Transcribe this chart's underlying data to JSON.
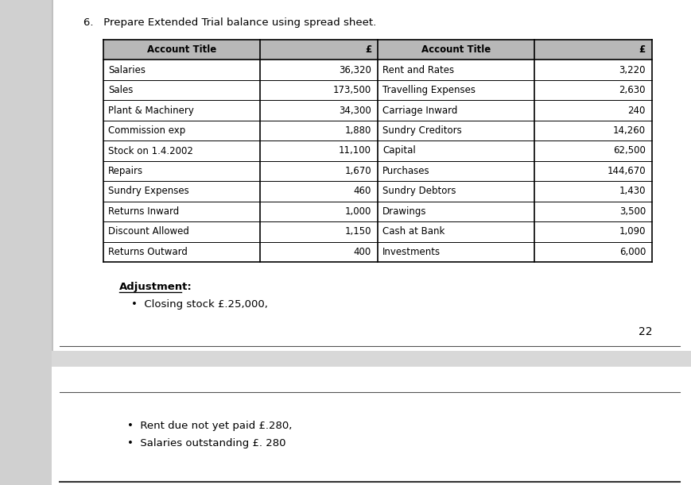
{
  "title": "6.   Prepare Extended Trial balance using spread sheet.",
  "header": [
    "Account Title",
    "£",
    "Account Title",
    "£"
  ],
  "left_accounts": [
    [
      "Salaries",
      "36,320"
    ],
    [
      "Sales",
      "173,500"
    ],
    [
      "Plant & Machinery",
      "34,300"
    ],
    [
      "Commission exp",
      "1,880"
    ],
    [
      "Stock on 1.4.2002",
      "11,100"
    ],
    [
      "Repairs",
      "1,670"
    ],
    [
      "Sundry Expenses",
      "460"
    ],
    [
      "Returns Inward",
      "1,000"
    ],
    [
      "Discount Allowed",
      "1,150"
    ],
    [
      "Returns Outward",
      "400"
    ]
  ],
  "right_accounts": [
    [
      "Rent and Rates",
      "3,220"
    ],
    [
      "Travelling Expenses",
      "2,630"
    ],
    [
      "Carriage Inward",
      "240"
    ],
    [
      "Sundry Creditors",
      "14,260"
    ],
    [
      "Capital",
      "62,500"
    ],
    [
      "Purchases",
      "144,670"
    ],
    [
      "Sundry Debtors",
      "1,430"
    ],
    [
      "Drawings",
      "3,500"
    ],
    [
      "Cash at Bank",
      "1,090"
    ],
    [
      "Investments",
      "6,000"
    ]
  ],
  "adjustment_title": "Adjustment:",
  "adjustment_items": [
    "Closing stock £.25,000,"
  ],
  "page_number": "22",
  "bottom_items": [
    "Rent due not yet paid £.280,",
    "Salaries outstanding £. 280"
  ],
  "header_bg": "#b8b8b8",
  "page1_bg": "#ffffff",
  "page2_bg": "#ffffff",
  "gap_bg": "#d8d8d8",
  "left_margin_bg": "#d0d0d0",
  "body_font_size": 8.5,
  "header_font_size": 8.5
}
